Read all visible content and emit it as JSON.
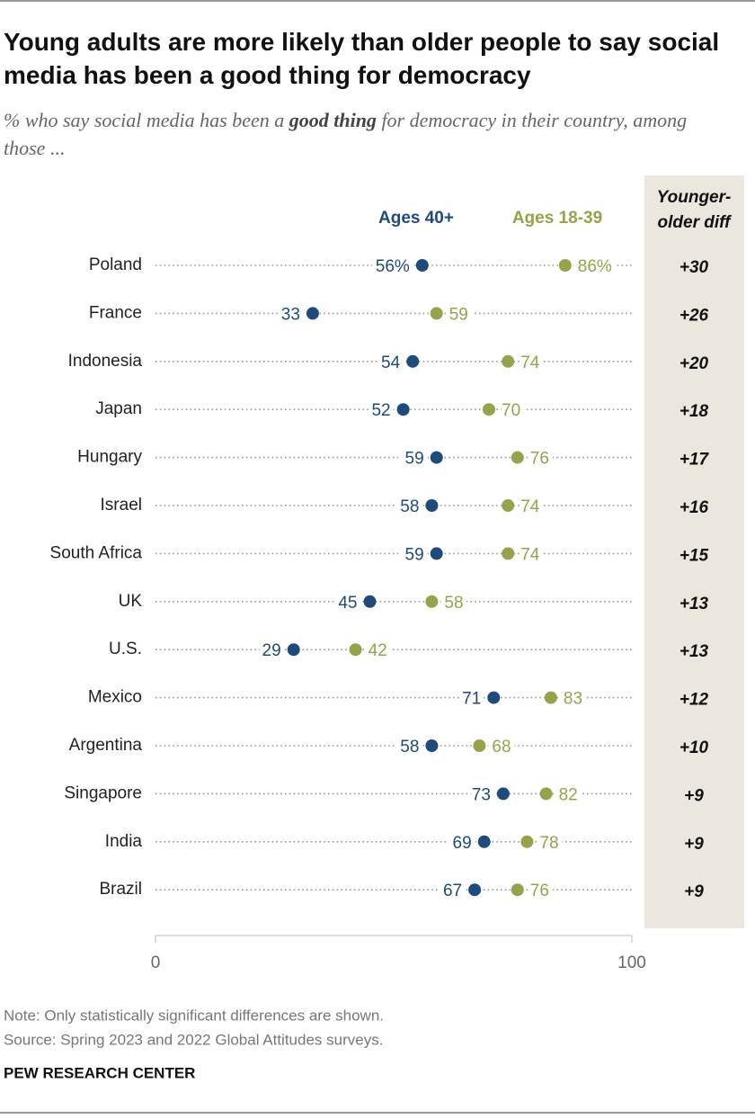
{
  "chart_data": {
    "type": "dot",
    "title": "Young adults are more likely than older people to say social media has been a good thing for democracy",
    "subtitle": [
      "% who say social media has been a ",
      "good thing",
      " for democracy in their country, among those ..."
    ],
    "categories": [
      "Poland",
      "France",
      "Indonesia",
      "Japan",
      "Hungary",
      "Israel",
      "South Africa",
      "UK",
      "U.S.",
      "Mexico",
      "Argentina",
      "Singapore",
      "India",
      "Brazil"
    ],
    "series": [
      {
        "name": "Ages 40+",
        "color": "#1f4a7c",
        "values": [
          56,
          33,
          54,
          52,
          59,
          58,
          59,
          45,
          29,
          71,
          58,
          73,
          69,
          67
        ],
        "value_labels": [
          "56%",
          "33",
          "54",
          "52",
          "59",
          "58",
          "59",
          "45",
          "29",
          "71",
          "58",
          "73",
          "69",
          "67"
        ]
      },
      {
        "name": "Ages 18-39",
        "color": "#98a24a",
        "values": [
          86,
          59,
          74,
          70,
          76,
          74,
          74,
          58,
          42,
          83,
          68,
          82,
          78,
          76
        ],
        "value_labels": [
          "86%",
          "59",
          "74",
          "70",
          "76",
          "74",
          "74",
          "58",
          "42",
          "83",
          "68",
          "82",
          "78",
          "76"
        ]
      }
    ],
    "diff_header": [
      "Younger-",
      "older diff"
    ],
    "diff_labels": [
      "+30",
      "+26",
      "+20",
      "+18",
      "+17",
      "+16",
      "+15",
      "+13",
      "+13",
      "+12",
      "+10",
      "+9",
      "+9",
      "+9"
    ],
    "xlim": [
      0,
      100
    ],
    "xticks": [
      0,
      100
    ],
    "note": "Note: Only statistically significant differences are shown.",
    "source": "Source: Spring 2023 and 2022 Global Attitudes surveys.",
    "brand": "PEW RESEARCH CENTER"
  }
}
